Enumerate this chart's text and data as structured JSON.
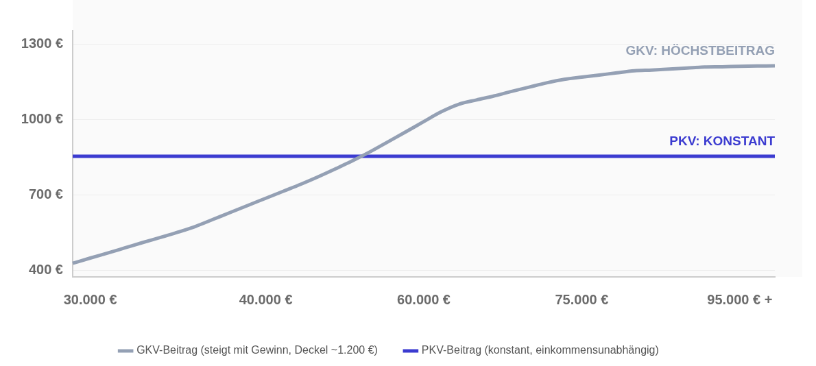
{
  "chart_data": {
    "type": "line",
    "categories": [
      null,
      "30.000 €",
      null,
      null,
      null,
      null,
      null,
      null,
      null,
      null,
      null,
      "40.000 €",
      null,
      null,
      null,
      null,
      null,
      null,
      null,
      null,
      "60.000 €",
      null,
      null,
      null,
      null,
      null,
      null,
      null,
      null,
      "75.000 €",
      null,
      null,
      null,
      null,
      null,
      null,
      null,
      null,
      "95.000 € +",
      null,
      null
    ],
    "series": [
      {
        "name": "GKV-Beitrag (steigt mit Gewinn, Deckel ~1.200 €)",
        "color": "#94a0b4",
        "values": [
          427,
          448,
          468,
          489,
          510,
          530,
          551,
          574,
          602,
          630,
          658,
          686,
          714,
          742,
          772,
          804,
          837,
          873,
          912,
          951,
          991,
          1030,
          1060,
          1077,
          1093,
          1111,
          1128,
          1145,
          1159,
          1168,
          1176,
          1185,
          1193,
          1196,
          1200,
          1204,
          1208,
          1209,
          1211,
          1212,
          1213
        ]
      },
      {
        "name": "PKV-Beitrag (konstant, einkommensunabhängig)",
        "color": "#3b3bd0",
        "values": [
          853,
          853,
          853,
          853,
          853,
          853,
          853,
          853,
          853,
          853,
          853,
          853,
          853,
          853,
          853,
          853,
          853,
          853,
          853,
          853,
          853,
          853,
          853,
          853,
          853,
          853,
          853,
          853,
          853,
          853,
          853,
          853,
          853,
          853,
          853,
          853,
          853,
          853,
          853,
          853,
          853
        ]
      }
    ],
    "ylim": [
      373,
      1352
    ],
    "yticks": [
      {
        "value": 400,
        "label": "400 €"
      },
      {
        "value": 700,
        "label": "700 €"
      },
      {
        "value": 1000,
        "label": "1000 €"
      },
      {
        "value": 1300,
        "label": "1300 €"
      }
    ],
    "annotations": [
      "GKV: HÖCHSTBEITRAG",
      "PKV: KONSTANT"
    ],
    "grid": "y",
    "legend": "bottom",
    "marker": "none",
    "line_style": "solid"
  }
}
